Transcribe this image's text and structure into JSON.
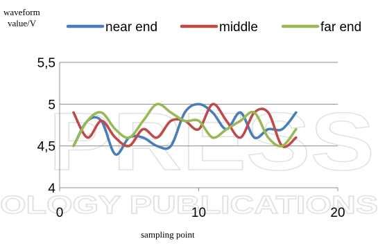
{
  "chart_data": {
    "type": "line",
    "title": "",
    "xlabel": "sampling point",
    "ylabel_line1": "waveform",
    "ylabel_line2": "value/V",
    "xlim": [
      0,
      20
    ],
    "ylim": [
      4,
      5.5
    ],
    "xticks": [
      0,
      10,
      20
    ],
    "xtick_labels": [
      "0",
      "10",
      "20"
    ],
    "yticks": [
      4,
      4.5,
      5,
      5.5
    ],
    "ytick_labels": [
      "4",
      "4,5",
      "5",
      "5,5"
    ],
    "grid": "horizontal",
    "legend_position": "top",
    "x": [
      1,
      2,
      3,
      4,
      5,
      6,
      7,
      8,
      9,
      10,
      11,
      12,
      13,
      14,
      15,
      16,
      17
    ],
    "series": [
      {
        "name": "near end",
        "color": "#4a7ebb",
        "values": [
          4.5,
          4.8,
          4.8,
          4.4,
          4.6,
          4.6,
          4.5,
          4.5,
          4.9,
          5.0,
          4.9,
          4.7,
          4.9,
          4.6,
          4.7,
          4.7,
          4.9
        ]
      },
      {
        "name": "middle",
        "color": "#be4b48",
        "values": [
          4.9,
          4.6,
          4.8,
          4.6,
          4.5,
          4.7,
          4.6,
          4.8,
          4.8,
          4.7,
          5.0,
          4.8,
          4.6,
          4.9,
          4.9,
          4.5,
          4.6
        ]
      },
      {
        "name": "far end",
        "color": "#98b954",
        "values": [
          4.5,
          4.8,
          4.9,
          4.7,
          4.6,
          4.8,
          5.0,
          4.9,
          4.8,
          4.8,
          4.6,
          4.7,
          4.8,
          4.9,
          4.6,
          4.5,
          4.7
        ]
      }
    ]
  },
  "watermark": {
    "large_text": "PRESS",
    "bottom_text": "OLOGY PUBLICATIONS"
  }
}
